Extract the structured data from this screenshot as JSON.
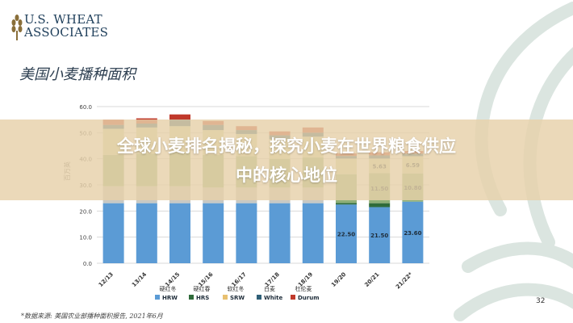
{
  "logo": {
    "line1": "U.S. WHEAT",
    "line2": "ASSOCIATES"
  },
  "slide_title": "美国小麦播种面积",
  "banner": {
    "line1": "全球小麦排名揭秘，探究小麦在世界粮食供应",
    "line2": "中的核心地位"
  },
  "footnote": "*数据来源: 美国农业部播种面积报告, 2021年6月",
  "page_number": "32",
  "colors": {
    "HRW": "#5b9bd5",
    "HRS": "#2f6b3a",
    "SRW": "#e8c070",
    "White": "#2f5f77",
    "Durum": "#c0392b",
    "upper": "#8faf77",
    "mid": "#d0d6a6",
    "low": "#c8c9c4",
    "grid": "#d9d9d9",
    "banner": "#e7d1aa"
  },
  "chart_data": {
    "type": "bar",
    "stacked": true,
    "ylabel": "百万英",
    "ylim": [
      0,
      60
    ],
    "yticks": [
      "0.0",
      "10.0",
      "20.0",
      "30.0",
      "40.0",
      "50.0",
      "60.0"
    ],
    "categories": [
      "12/13",
      "13/14",
      "14/15",
      "15/16",
      "16/17",
      "17/18",
      "18/19",
      "19/20",
      "20/21",
      "21/22*"
    ],
    "segments": [
      {
        "key": "HRW",
        "values": [
          23.0,
          23.0,
          23.0,
          23.0,
          23.0,
          23.0,
          23.0,
          22.5,
          21.5,
          23.6
        ]
      },
      {
        "key": "HRS",
        "values": [
          0,
          0,
          0,
          0,
          0,
          0,
          0,
          0.6,
          1.5,
          0
        ]
      },
      {
        "key": "low",
        "values": [
          6.5,
          6.5,
          6.5,
          6.0,
          6.0,
          6.0,
          6.0,
          0,
          0,
          0
        ]
      },
      {
        "key": "upper",
        "values": [
          12.0,
          12.5,
          13.0,
          12.5,
          12.0,
          11.0,
          11.5,
          11.0,
          11.5,
          10.8
        ]
      },
      {
        "key": "mid",
        "values": [
          10.0,
          10.0,
          10.0,
          9.5,
          8.5,
          7.5,
          8.0,
          6.0,
          5.6,
          6.6
        ]
      },
      {
        "key": "White",
        "values": [
          1.5,
          1.5,
          2.5,
          2.0,
          1.5,
          1.5,
          1.5,
          1.0,
          1.2,
          1.0
        ]
      },
      {
        "key": "Durum",
        "values": [
          2.0,
          2.0,
          2.0,
          1.5,
          1.5,
          1.5,
          2.0,
          1.0,
          1.2,
          1.0
        ]
      }
    ],
    "data_labels": [
      {
        "category": "19/20",
        "value": 22.5,
        "text": "22.50"
      },
      {
        "category": "20/21",
        "value": 21.5,
        "text": "21.50"
      },
      {
        "category": "21/22*",
        "value": 23.6,
        "text": "23.60"
      },
      {
        "category": "20/21",
        "value": 11.5,
        "text": "11.50"
      },
      {
        "category": "21/22*",
        "value": 10.8,
        "text": "10.80"
      },
      {
        "category": "20/21",
        "value": 5.63,
        "text": "5.63"
      },
      {
        "category": "21/22*",
        "value": 6.59,
        "text": "6.59"
      }
    ],
    "legend": [
      {
        "key": "HRW",
        "cn": "硬红冬",
        "en": "HRW"
      },
      {
        "key": "HRS",
        "cn": "硬红春",
        "en": "HRS"
      },
      {
        "key": "SRW",
        "cn": "软红冬",
        "en": "SRW"
      },
      {
        "key": "White",
        "cn": "白麦",
        "en": "White"
      },
      {
        "key": "Durum",
        "cn": "杜伦麦",
        "en": "Durum"
      }
    ]
  }
}
